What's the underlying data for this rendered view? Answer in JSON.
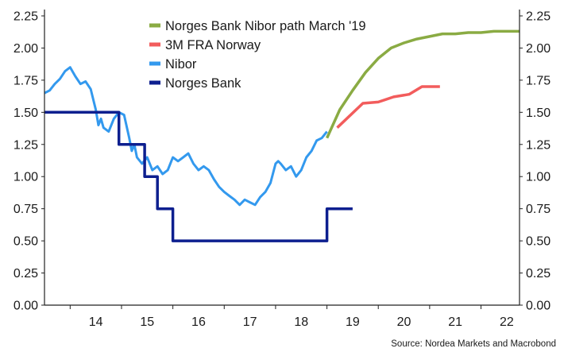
{
  "chart_data": {
    "type": "line",
    "title": "",
    "xlabel": "",
    "ylabel": "",
    "ylim": [
      0,
      2.25
    ],
    "xlim": [
      2013.5,
      2022.75
    ],
    "y_ticks": [
      "0.00",
      "0.25",
      "0.50",
      "0.75",
      "1.00",
      "1.25",
      "1.50",
      "1.75",
      "2.00",
      "2.25"
    ],
    "x_tick_labels": [
      {
        "x": 2014.5,
        "label": "14"
      },
      {
        "x": 2015.5,
        "label": "15"
      },
      {
        "x": 2016.5,
        "label": "16"
      },
      {
        "x": 2017.5,
        "label": "17"
      },
      {
        "x": 2018.5,
        "label": "18"
      },
      {
        "x": 2019.5,
        "label": "19"
      },
      {
        "x": 2020.5,
        "label": "20"
      },
      {
        "x": 2021.5,
        "label": "21"
      },
      {
        "x": 2022.5,
        "label": "22"
      }
    ],
    "legend_position": "top-center",
    "grid": false,
    "source": "Source: Nordea Markets and Macrobond",
    "series": [
      {
        "name": "Norges Bank Nibor path March '19",
        "color": "#8aab43",
        "x": [
          2019.0,
          2019.25,
          2019.5,
          2019.75,
          2020.0,
          2020.25,
          2020.5,
          2020.75,
          2021.0,
          2021.25,
          2021.5,
          2021.75,
          2022.0,
          2022.25,
          2022.5,
          2022.75
        ],
        "values": [
          1.3,
          1.52,
          1.67,
          1.81,
          1.92,
          2.0,
          2.04,
          2.07,
          2.09,
          2.11,
          2.11,
          2.12,
          2.12,
          2.13,
          2.13,
          2.13
        ]
      },
      {
        "name": "3M FRA Norway",
        "color": "#f25c5c",
        "x": [
          2019.2,
          2019.7,
          2020.0,
          2020.3,
          2020.6,
          2020.85,
          2021.2
        ],
        "values": [
          1.38,
          1.57,
          1.58,
          1.62,
          1.64,
          1.7,
          1.7
        ]
      },
      {
        "name": "Nibor",
        "color": "#3399ee",
        "x": [
          2013.5,
          2013.6,
          2013.7,
          2013.8,
          2013.9,
          2014.0,
          2014.1,
          2014.2,
          2014.3,
          2014.4,
          2014.45,
          2014.5,
          2014.55,
          2014.6,
          2014.65,
          2014.75,
          2014.85,
          2014.95,
          2015.05,
          2015.15,
          2015.2,
          2015.25,
          2015.3,
          2015.4,
          2015.5,
          2015.6,
          2015.7,
          2015.8,
          2015.9,
          2016.0,
          2016.1,
          2016.2,
          2016.3,
          2016.4,
          2016.5,
          2016.6,
          2016.7,
          2016.8,
          2016.9,
          2017.0,
          2017.1,
          2017.2,
          2017.3,
          2017.4,
          2017.5,
          2017.6,
          2017.7,
          2017.8,
          2017.9,
          2018.0,
          2018.05,
          2018.1,
          2018.2,
          2018.3,
          2018.4,
          2018.5,
          2018.6,
          2018.7,
          2018.8,
          2018.9,
          2019.0
        ],
        "values": [
          1.65,
          1.67,
          1.72,
          1.76,
          1.82,
          1.85,
          1.78,
          1.72,
          1.74,
          1.68,
          1.6,
          1.52,
          1.4,
          1.45,
          1.38,
          1.35,
          1.45,
          1.5,
          1.48,
          1.3,
          1.2,
          1.25,
          1.15,
          1.1,
          1.15,
          1.05,
          1.08,
          1.02,
          1.05,
          1.15,
          1.12,
          1.15,
          1.18,
          1.1,
          1.05,
          1.08,
          1.05,
          0.98,
          0.92,
          0.88,
          0.85,
          0.82,
          0.78,
          0.82,
          0.8,
          0.78,
          0.84,
          0.88,
          0.95,
          1.1,
          1.12,
          1.1,
          1.05,
          1.08,
          1.0,
          1.05,
          1.15,
          1.2,
          1.28,
          1.3,
          1.35
        ]
      },
      {
        "name": "Norges Bank",
        "color": "#0d1f8f",
        "x": [
          2013.5,
          2014.95,
          2014.95,
          2015.45,
          2015.45,
          2015.7,
          2015.7,
          2016.0,
          2016.0,
          2016.5,
          2016.5,
          2019.0,
          2019.0,
          2019.5
        ],
        "values": [
          1.5,
          1.5,
          1.25,
          1.25,
          1.0,
          1.0,
          0.75,
          0.75,
          0.5,
          0.5,
          0.5,
          0.5,
          0.75,
          0.75
        ]
      }
    ]
  }
}
